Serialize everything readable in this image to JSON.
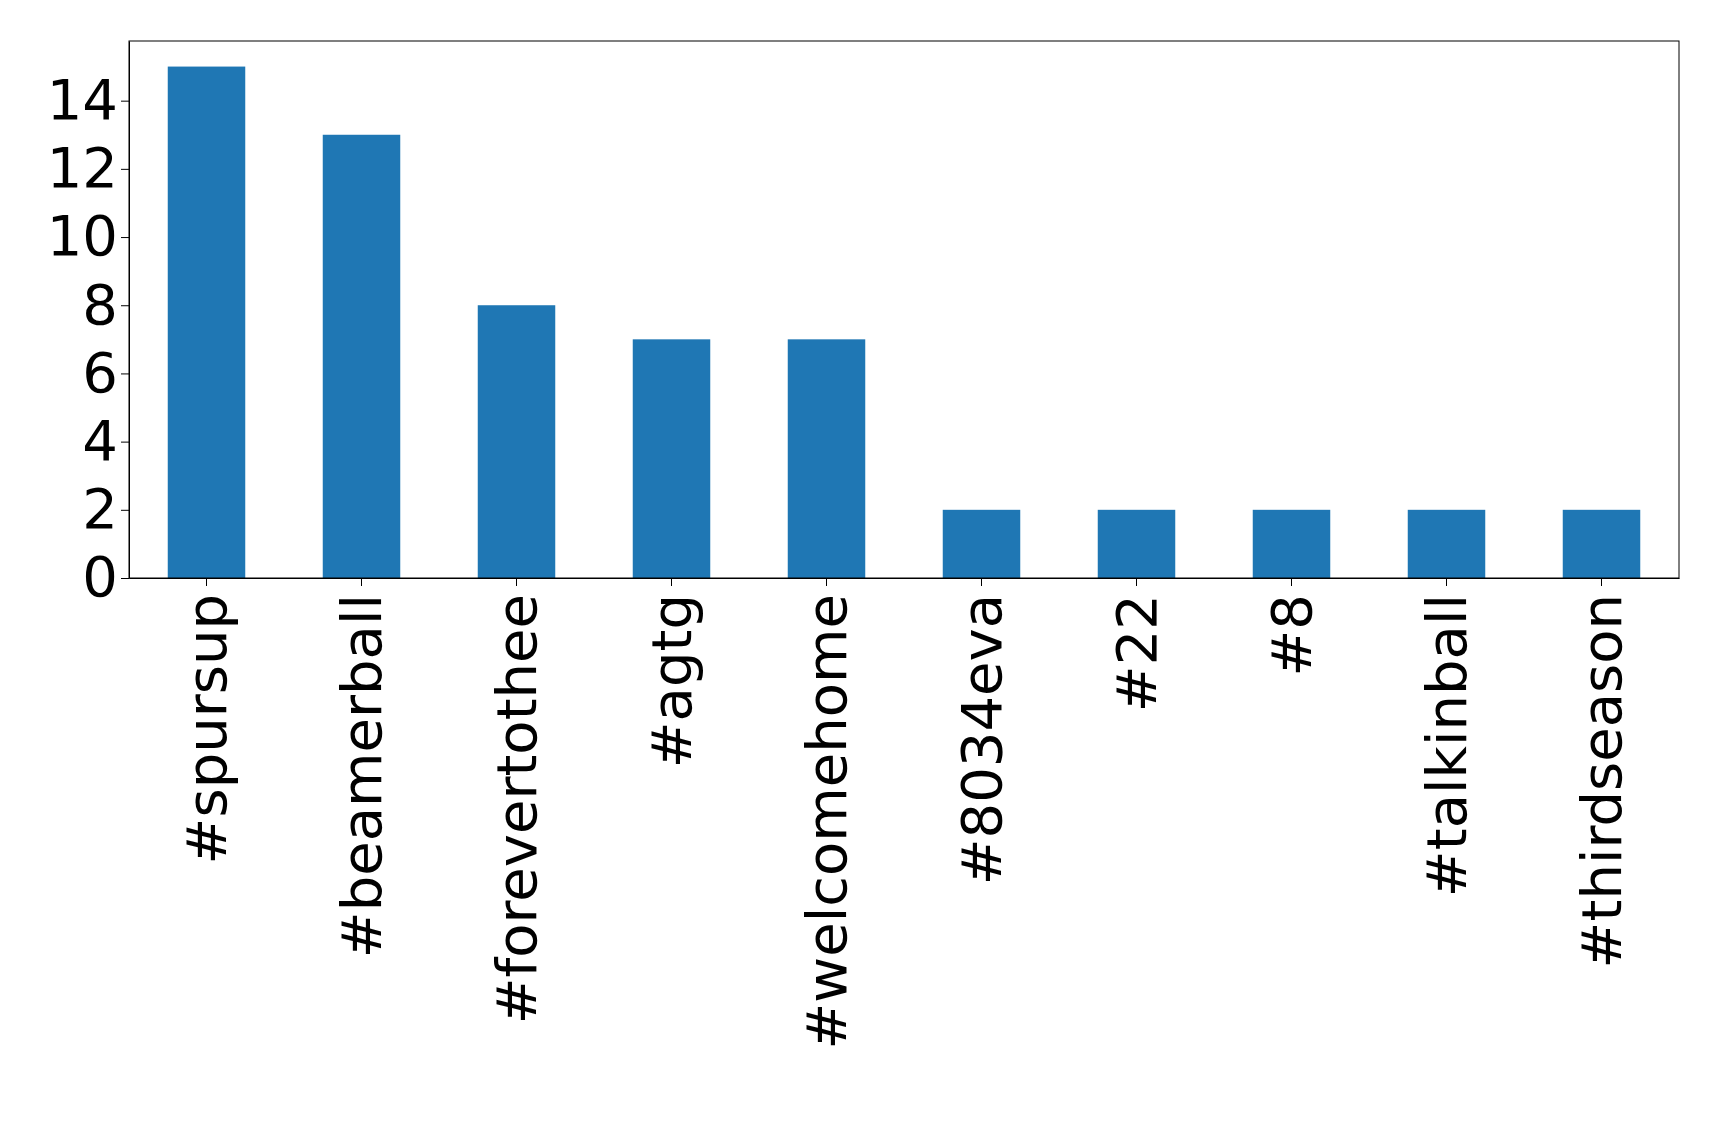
{
  "chart_data": {
    "type": "bar",
    "categories": [
      "#spursup",
      "#beamerball",
      "#forevertothee",
      "#agtg",
      "#welcomehome",
      "#8034eva",
      "#22",
      "#8",
      "#talkinball",
      "#thirdseason"
    ],
    "values": [
      15,
      13,
      8,
      7,
      7,
      2,
      2,
      2,
      2,
      2
    ],
    "color": "#1f77b4",
    "ylim": [
      0,
      15.75
    ],
    "yticks": [
      0,
      2,
      4,
      6,
      8,
      10,
      12,
      14
    ]
  }
}
